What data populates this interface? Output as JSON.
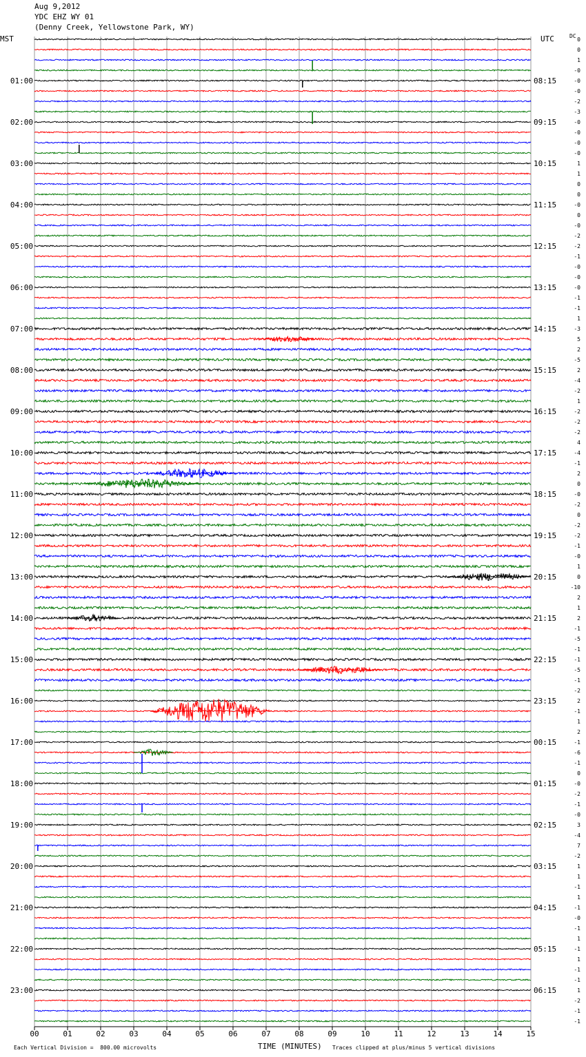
{
  "header": {
    "date": "Aug 9,2012",
    "station": "YDC EHZ WY 01",
    "location": "(Denny Creek, Yellowstone Park, WY)"
  },
  "left_axis_label": "MST",
  "right_axis_label": "UTC",
  "dc_label": "DC",
  "footer": {
    "scale_note": "Each Vertical Division =  800.00 microvolts",
    "x_title": "TIME (MINUTES)",
    "clip_note": "Traces clipped at plus/minus 5 vertical divisions"
  },
  "trace_colors": [
    "#000000",
    "#ff0000",
    "#0000ff",
    "#007700"
  ],
  "chart_data": {
    "type": "line",
    "title": "",
    "xlabel": "TIME (MINUTES)",
    "xlim": [
      0,
      15
    ],
    "x_ticks": [
      "00",
      "01",
      "02",
      "03",
      "04",
      "05",
      "06",
      "07",
      "08",
      "09",
      "10",
      "11",
      "12",
      "13",
      "14",
      "15"
    ],
    "left_hour_labels": [
      "01:00",
      "02:00",
      "03:00",
      "04:00",
      "05:00",
      "06:00",
      "07:00",
      "08:00",
      "09:00",
      "10:00",
      "11:00",
      "12:00",
      "13:00",
      "14:00",
      "15:00",
      "16:00",
      "17:00",
      "18:00",
      "19:00",
      "20:00",
      "21:00",
      "22:00",
      "23:00"
    ],
    "right_hour_labels": [
      "08:15",
      "09:15",
      "10:15",
      "11:15",
      "12:15",
      "13:15",
      "14:15",
      "15:15",
      "16:15",
      "17:15",
      "18:15",
      "19:15",
      "20:15",
      "21:15",
      "22:15",
      "23:15",
      "00:15",
      "01:15",
      "02:15",
      "03:15",
      "04:15",
      "05:15",
      "06:15"
    ],
    "row_count": 96,
    "dc_offsets": [
      "0",
      "0",
      "1",
      "-0",
      "-0",
      "-0",
      "-2",
      "-3",
      "-0",
      "-0",
      "-0",
      "-0",
      "1",
      "1",
      "0",
      "0",
      "-0",
      "0",
      "-0",
      "-2",
      "-2",
      "-1",
      "-0",
      "-0",
      "-0",
      "-1",
      "-1",
      "1",
      "-3",
      "5",
      "2",
      "-5",
      "2",
      "-4",
      "-2",
      "1",
      "-2",
      "-2",
      "-2",
      "4",
      "-4",
      "-1",
      "2",
      "0",
      "-0",
      "-2",
      "0",
      "-2",
      "-2",
      "-1",
      "-0",
      "1",
      "0",
      "-10",
      "2",
      "1",
      "2",
      "-1",
      "-5",
      "-1",
      "-1",
      "-5",
      "-1",
      "-2",
      "2",
      "-1",
      "1",
      "2",
      "-1",
      "-6",
      "-1",
      "0",
      "-0",
      "-2",
      "-1",
      "-0",
      "3",
      "-4",
      "7",
      "-2",
      "1",
      "1",
      "-1",
      "1",
      "-1",
      "-0",
      "-1",
      "1",
      "-1",
      "1",
      "-1",
      "-1",
      "1",
      "-2",
      "-1",
      "-1"
    ],
    "grid": true
  }
}
